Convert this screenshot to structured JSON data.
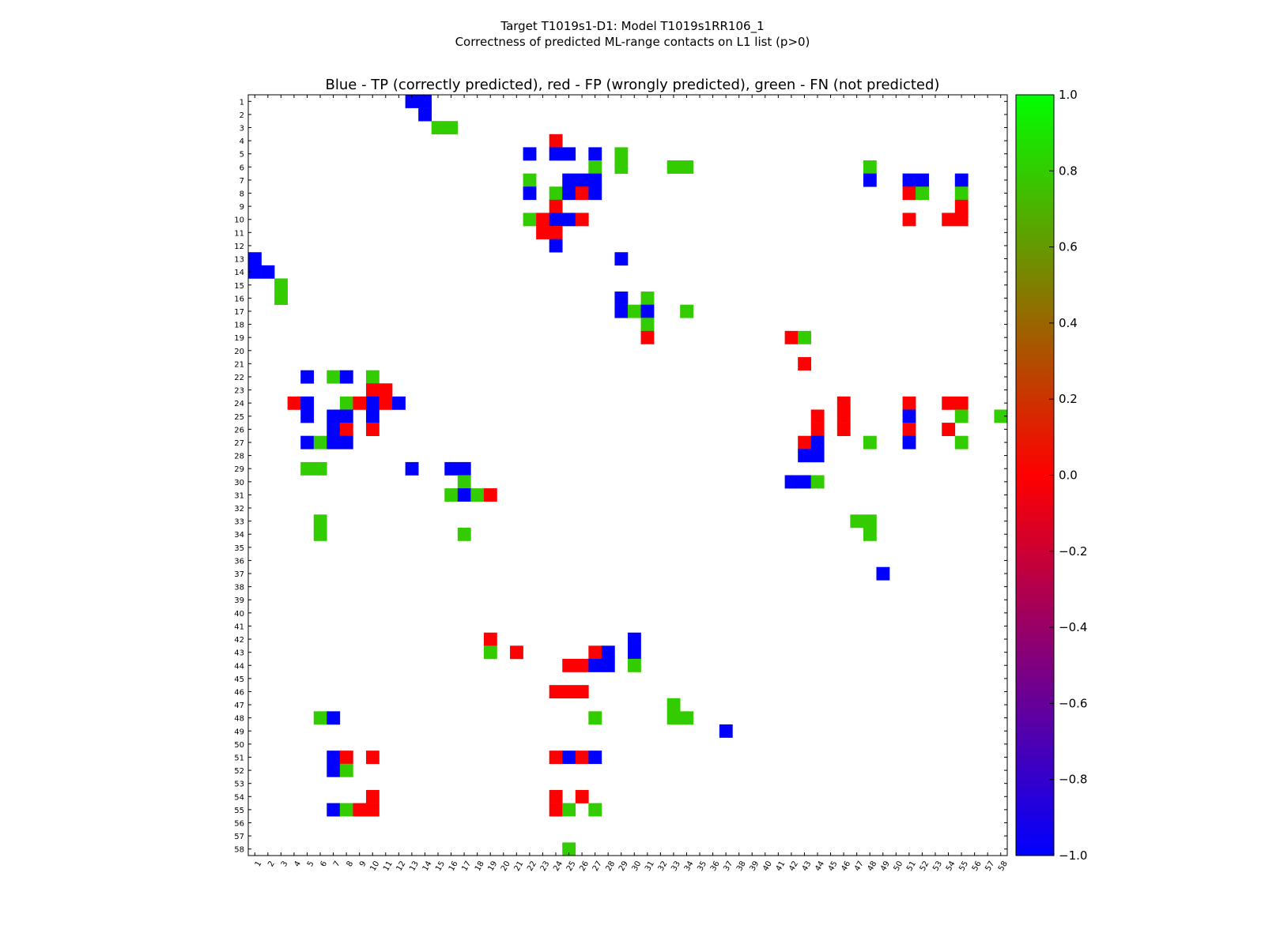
{
  "chart_data": {
    "type": "heatmap",
    "suptitle_line1": "Target T1019s1-D1: Model T1019s1RR106_1",
    "suptitle_line2": "Correctness of predicted ML-range contacts on L1 list (p>0)",
    "title": "Blue - TP (correctly predicted), red - FP (wrongly predicted), green - FN (not predicted)",
    "n": 58,
    "x_ticks": [
      1,
      2,
      3,
      4,
      5,
      6,
      7,
      8,
      9,
      10,
      11,
      12,
      13,
      14,
      15,
      16,
      17,
      18,
      19,
      20,
      21,
      22,
      23,
      24,
      25,
      26,
      27,
      28,
      29,
      30,
      31,
      32,
      33,
      34,
      35,
      36,
      37,
      38,
      39,
      40,
      41,
      42,
      43,
      44,
      45,
      46,
      47,
      48,
      49,
      50,
      51,
      52,
      53,
      54,
      55,
      56,
      57,
      58
    ],
    "y_ticks": [
      1,
      2,
      3,
      4,
      5,
      6,
      7,
      8,
      9,
      10,
      11,
      12,
      13,
      14,
      15,
      16,
      17,
      18,
      19,
      20,
      21,
      22,
      23,
      24,
      25,
      26,
      27,
      28,
      29,
      30,
      31,
      32,
      33,
      34,
      35,
      36,
      37,
      38,
      39,
      40,
      41,
      42,
      43,
      44,
      45,
      46,
      47,
      48,
      49,
      50,
      51,
      52,
      53,
      54,
      55,
      56,
      57,
      58
    ],
    "legend": {
      "TP": -1,
      "FP": 0,
      "FN": 0.8
    },
    "colorbar": {
      "min": -1.0,
      "max": 1.0,
      "ticks": [
        1.0,
        0.8,
        0.6,
        0.4,
        0.2,
        0.0,
        -0.2,
        -0.4,
        -0.6,
        -0.8,
        -1.0
      ],
      "tick_labels": [
        "1.0",
        "0.8",
        "0.6",
        "0.4",
        "0.2",
        "0.0",
        "−0.2",
        "−0.4",
        "−0.6",
        "−0.8",
        "−1.0"
      ]
    },
    "colors": {
      "TP": "#0000ff",
      "FP": "#ff0000",
      "FN": "#33cc00"
    },
    "cells": [
      [
        1,
        13,
        "TP"
      ],
      [
        1,
        14,
        "TP"
      ],
      [
        2,
        14,
        "TP"
      ],
      [
        3,
        15,
        "FN"
      ],
      [
        3,
        16,
        "FN"
      ],
      [
        4,
        24,
        "FP"
      ],
      [
        5,
        22,
        "TP"
      ],
      [
        5,
        24,
        "TP"
      ],
      [
        5,
        25,
        "TP"
      ],
      [
        5,
        27,
        "TP"
      ],
      [
        5,
        29,
        "FN"
      ],
      [
        6,
        27,
        "FN"
      ],
      [
        6,
        29,
        "FN"
      ],
      [
        6,
        33,
        "FN"
      ],
      [
        6,
        34,
        "FN"
      ],
      [
        6,
        48,
        "FN"
      ],
      [
        7,
        22,
        "FN"
      ],
      [
        7,
        25,
        "TP"
      ],
      [
        7,
        26,
        "TP"
      ],
      [
        7,
        27,
        "TP"
      ],
      [
        7,
        48,
        "TP"
      ],
      [
        7,
        51,
        "TP"
      ],
      [
        7,
        52,
        "TP"
      ],
      [
        7,
        55,
        "TP"
      ],
      [
        8,
        22,
        "TP"
      ],
      [
        8,
        24,
        "FN"
      ],
      [
        8,
        25,
        "TP"
      ],
      [
        8,
        26,
        "FP"
      ],
      [
        8,
        27,
        "TP"
      ],
      [
        8,
        51,
        "FP"
      ],
      [
        8,
        52,
        "FN"
      ],
      [
        8,
        55,
        "FN"
      ],
      [
        9,
        24,
        "FP"
      ],
      [
        9,
        55,
        "FP"
      ],
      [
        10,
        22,
        "FN"
      ],
      [
        10,
        23,
        "FP"
      ],
      [
        10,
        24,
        "TP"
      ],
      [
        10,
        25,
        "TP"
      ],
      [
        10,
        26,
        "FP"
      ],
      [
        10,
        51,
        "FP"
      ],
      [
        10,
        54,
        "FP"
      ],
      [
        10,
        55,
        "FP"
      ],
      [
        11,
        23,
        "FP"
      ],
      [
        11,
        24,
        "FP"
      ],
      [
        12,
        24,
        "TP"
      ],
      [
        13,
        1,
        "TP"
      ],
      [
        13,
        29,
        "TP"
      ],
      [
        14,
        1,
        "TP"
      ],
      [
        14,
        2,
        "TP"
      ],
      [
        15,
        3,
        "FN"
      ],
      [
        16,
        3,
        "FN"
      ],
      [
        16,
        29,
        "TP"
      ],
      [
        16,
        31,
        "FN"
      ],
      [
        17,
        29,
        "TP"
      ],
      [
        17,
        30,
        "FN"
      ],
      [
        17,
        31,
        "TP"
      ],
      [
        17,
        34,
        "FN"
      ],
      [
        18,
        31,
        "FN"
      ],
      [
        19,
        31,
        "FP"
      ],
      [
        19,
        42,
        "FP"
      ],
      [
        19,
        43,
        "FN"
      ],
      [
        21,
        43,
        "FP"
      ],
      [
        22,
        5,
        "TP"
      ],
      [
        22,
        7,
        "FN"
      ],
      [
        22,
        8,
        "TP"
      ],
      [
        22,
        10,
        "FN"
      ],
      [
        23,
        10,
        "FP"
      ],
      [
        23,
        11,
        "FP"
      ],
      [
        24,
        4,
        "FP"
      ],
      [
        24,
        5,
        "TP"
      ],
      [
        24,
        8,
        "FN"
      ],
      [
        24,
        9,
        "FP"
      ],
      [
        24,
        10,
        "TP"
      ],
      [
        24,
        11,
        "FP"
      ],
      [
        24,
        12,
        "TP"
      ],
      [
        24,
        46,
        "FP"
      ],
      [
        24,
        51,
        "FP"
      ],
      [
        24,
        54,
        "FP"
      ],
      [
        24,
        55,
        "FP"
      ],
      [
        25,
        5,
        "TP"
      ],
      [
        25,
        7,
        "TP"
      ],
      [
        25,
        8,
        "TP"
      ],
      [
        25,
        10,
        "TP"
      ],
      [
        25,
        44,
        "FP"
      ],
      [
        25,
        46,
        "FP"
      ],
      [
        25,
        51,
        "TP"
      ],
      [
        25,
        55,
        "FN"
      ],
      [
        25,
        58,
        "FN"
      ],
      [
        26,
        7,
        "TP"
      ],
      [
        26,
        8,
        "FP"
      ],
      [
        26,
        10,
        "FP"
      ],
      [
        26,
        44,
        "FP"
      ],
      [
        26,
        46,
        "FP"
      ],
      [
        26,
        51,
        "FP"
      ],
      [
        26,
        54,
        "FP"
      ],
      [
        27,
        5,
        "TP"
      ],
      [
        27,
        6,
        "FN"
      ],
      [
        27,
        7,
        "TP"
      ],
      [
        27,
        8,
        "TP"
      ],
      [
        27,
        43,
        "FP"
      ],
      [
        27,
        44,
        "TP"
      ],
      [
        27,
        48,
        "FN"
      ],
      [
        27,
        51,
        "TP"
      ],
      [
        27,
        55,
        "FN"
      ],
      [
        28,
        43,
        "TP"
      ],
      [
        28,
        44,
        "TP"
      ],
      [
        29,
        5,
        "FN"
      ],
      [
        29,
        6,
        "FN"
      ],
      [
        29,
        13,
        "TP"
      ],
      [
        29,
        16,
        "TP"
      ],
      [
        29,
        17,
        "TP"
      ],
      [
        30,
        17,
        "FN"
      ],
      [
        30,
        42,
        "TP"
      ],
      [
        30,
        43,
        "TP"
      ],
      [
        30,
        44,
        "FN"
      ],
      [
        31,
        16,
        "FN"
      ],
      [
        31,
        17,
        "TP"
      ],
      [
        31,
        18,
        "FN"
      ],
      [
        31,
        19,
        "FP"
      ],
      [
        33,
        6,
        "FN"
      ],
      [
        33,
        47,
        "FN"
      ],
      [
        33,
        48,
        "FN"
      ],
      [
        34,
        6,
        "FN"
      ],
      [
        34,
        17,
        "FN"
      ],
      [
        34,
        48,
        "FN"
      ],
      [
        37,
        49,
        "TP"
      ],
      [
        42,
        19,
        "FP"
      ],
      [
        42,
        30,
        "TP"
      ],
      [
        43,
        19,
        "FN"
      ],
      [
        43,
        21,
        "FP"
      ],
      [
        43,
        27,
        "FP"
      ],
      [
        43,
        28,
        "TP"
      ],
      [
        43,
        30,
        "TP"
      ],
      [
        44,
        25,
        "FP"
      ],
      [
        44,
        26,
        "FP"
      ],
      [
        44,
        27,
        "TP"
      ],
      [
        44,
        28,
        "TP"
      ],
      [
        44,
        30,
        "FN"
      ],
      [
        46,
        24,
        "FP"
      ],
      [
        46,
        25,
        "FP"
      ],
      [
        46,
        26,
        "FP"
      ],
      [
        47,
        33,
        "FN"
      ],
      [
        48,
        6,
        "FN"
      ],
      [
        48,
        7,
        "TP"
      ],
      [
        48,
        27,
        "FN"
      ],
      [
        48,
        33,
        "FN"
      ],
      [
        48,
        34,
        "FN"
      ],
      [
        49,
        37,
        "TP"
      ],
      [
        51,
        7,
        "TP"
      ],
      [
        51,
        8,
        "FP"
      ],
      [
        51,
        10,
        "FP"
      ],
      [
        51,
        24,
        "FP"
      ],
      [
        51,
        25,
        "TP"
      ],
      [
        51,
        26,
        "FP"
      ],
      [
        51,
        27,
        "TP"
      ],
      [
        52,
        7,
        "TP"
      ],
      [
        52,
        8,
        "FN"
      ],
      [
        54,
        10,
        "FP"
      ],
      [
        54,
        24,
        "FP"
      ],
      [
        54,
        26,
        "FP"
      ],
      [
        55,
        7,
        "TP"
      ],
      [
        55,
        8,
        "FN"
      ],
      [
        55,
        9,
        "FP"
      ],
      [
        55,
        10,
        "FP"
      ],
      [
        55,
        24,
        "FP"
      ],
      [
        55,
        25,
        "FN"
      ],
      [
        55,
        27,
        "FN"
      ],
      [
        58,
        25,
        "FN"
      ]
    ]
  }
}
